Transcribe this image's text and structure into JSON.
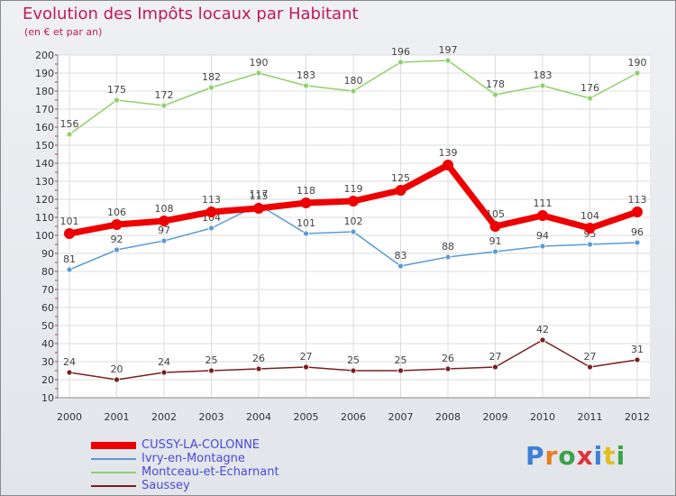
{
  "title": "Evolution des Impôts locaux par Habitant",
  "subtitle": "(en € et par an)",
  "logo": "Proxiti",
  "chart_data": {
    "type": "line",
    "title": "Evolution des Impôts locaux par Habitant",
    "subtitle": "(en € et par an)",
    "xlabel": "",
    "ylabel": "",
    "ylim": [
      10,
      200
    ],
    "yticks": [
      10,
      20,
      30,
      40,
      50,
      60,
      70,
      80,
      90,
      100,
      110,
      120,
      130,
      140,
      150,
      160,
      170,
      180,
      190,
      200
    ],
    "grid": true,
    "legend_position": "bottom-left",
    "x": [
      "2000",
      "2001",
      "2002",
      "2003",
      "2004",
      "2005",
      "2006",
      "2007",
      "2008",
      "2009",
      "2010",
      "2011",
      "2012"
    ],
    "series": [
      {
        "name": "CUSSY-LA-COLONNE",
        "color": "#ee0000",
        "values": [
          101,
          106,
          108,
          113,
          115,
          118,
          119,
          125,
          139,
          105,
          111,
          104,
          113
        ]
      },
      {
        "name": "Ivry-en-Montagne",
        "color": "#5b9bd5",
        "values": [
          81,
          92,
          97,
          104,
          117,
          101,
          102,
          83,
          88,
          91,
          94,
          95,
          96
        ]
      },
      {
        "name": "Montceau-et-Echarnant",
        "color": "#8fd16a",
        "values": [
          156,
          175,
          172,
          182,
          190,
          183,
          180,
          196,
          197,
          178,
          183,
          176,
          190
        ]
      },
      {
        "name": "Saussey",
        "color": "#7a1f1f",
        "values": [
          24,
          20,
          24,
          25,
          26,
          27,
          25,
          25,
          26,
          27,
          42,
          27,
          31
        ]
      }
    ]
  }
}
